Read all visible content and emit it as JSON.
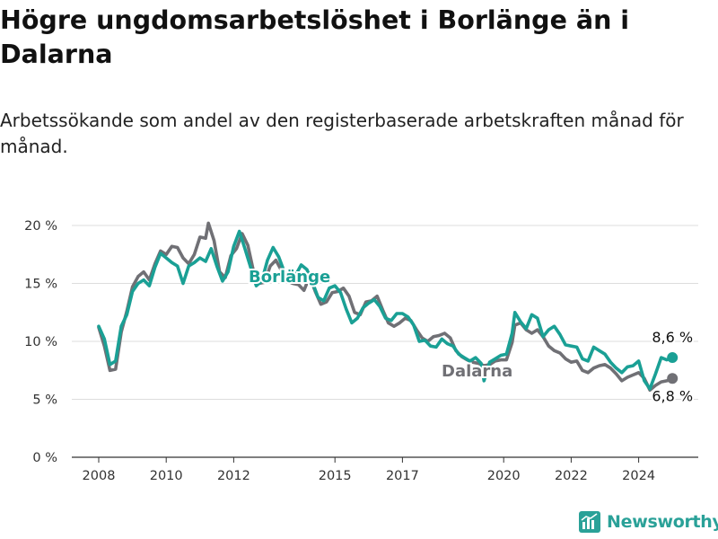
{
  "title": "Högre ungdomsarbetslöshet i Borlänge än i Dalarna",
  "subtitle": "Arbetssökande som andel av den registerbaserade arbetskraften månad för månad.",
  "brand": {
    "name": "Newsworthy",
    "icon": "newsworthy-logo-icon",
    "color": "#2aa198"
  },
  "colors": {
    "borlange": "#1aa095",
    "dalarna": "#707075",
    "grid": "#dddddd",
    "axis": "#333333"
  },
  "chart_data": {
    "type": "line",
    "x_type": "date",
    "xlim": [
      "2007-09",
      "2025-06"
    ],
    "ylim": [
      0,
      20
    ],
    "yticks": [
      0,
      5,
      10,
      15,
      20
    ],
    "ytick_labels": [
      "0 %",
      "5 %",
      "10 %",
      "15 %",
      "20 %"
    ],
    "xticks": [
      "2008-01",
      "2010-01",
      "2012-01",
      "2015-01",
      "2017-01",
      "2020-01",
      "2022-01",
      "2024-01"
    ],
    "xtick_labels": [
      "2008",
      "2010",
      "2012",
      "2015",
      "2017",
      "2020",
      "2022",
      "2024"
    ],
    "grid": true,
    "series": [
      {
        "name": "Dalarna",
        "key": "dalarna",
        "end_label": "6,8 %",
        "points": [
          [
            "2008-01",
            11.2
          ],
          [
            "2008-03",
            9.6
          ],
          [
            "2008-05",
            7.5
          ],
          [
            "2008-07",
            7.6
          ],
          [
            "2008-09",
            10.8
          ],
          [
            "2008-11",
            12.6
          ],
          [
            "2009-01",
            14.7
          ],
          [
            "2009-03",
            15.6
          ],
          [
            "2009-05",
            16.0
          ],
          [
            "2009-07",
            15.3
          ],
          [
            "2009-09",
            16.7
          ],
          [
            "2009-11",
            17.8
          ],
          [
            "2010-01",
            17.5
          ],
          [
            "2010-03",
            18.2
          ],
          [
            "2010-05",
            18.1
          ],
          [
            "2010-07",
            17.2
          ],
          [
            "2010-09",
            16.7
          ],
          [
            "2010-11",
            17.5
          ],
          [
            "2011-01",
            19.0
          ],
          [
            "2011-03",
            18.9
          ],
          [
            "2011-04",
            20.2
          ],
          [
            "2011-06",
            18.7
          ],
          [
            "2011-08",
            16.0
          ],
          [
            "2011-10",
            15.5
          ],
          [
            "2011-12",
            17.4
          ],
          [
            "2012-02",
            18.0
          ],
          [
            "2012-04",
            19.3
          ],
          [
            "2012-06",
            18.3
          ],
          [
            "2012-08",
            16.1
          ],
          [
            "2012-10",
            15.0
          ],
          [
            "2012-12",
            15.1
          ],
          [
            "2013-02",
            16.5
          ],
          [
            "2013-04",
            17.0
          ],
          [
            "2013-06",
            16.1
          ],
          [
            "2013-08",
            15.2
          ],
          [
            "2013-10",
            15.0
          ],
          [
            "2013-12",
            14.9
          ],
          [
            "2014-02",
            14.4
          ],
          [
            "2014-04",
            15.6
          ],
          [
            "2014-06",
            14.3
          ],
          [
            "2014-08",
            13.2
          ],
          [
            "2014-10",
            13.4
          ],
          [
            "2014-12",
            14.2
          ],
          [
            "2015-02",
            14.3
          ],
          [
            "2015-04",
            14.6
          ],
          [
            "2015-06",
            13.9
          ],
          [
            "2015-08",
            12.5
          ],
          [
            "2015-10",
            12.3
          ],
          [
            "2015-12",
            13.4
          ],
          [
            "2016-02",
            13.5
          ],
          [
            "2016-04",
            13.9
          ],
          [
            "2016-06",
            12.7
          ],
          [
            "2016-08",
            11.6
          ],
          [
            "2016-10",
            11.3
          ],
          [
            "2016-12",
            11.6
          ],
          [
            "2017-02",
            12.0
          ],
          [
            "2017-04",
            11.8
          ],
          [
            "2017-06",
            11.0
          ],
          [
            "2017-08",
            10.3
          ],
          [
            "2017-10",
            10.0
          ],
          [
            "2017-12",
            10.4
          ],
          [
            "2018-02",
            10.5
          ],
          [
            "2018-04",
            10.7
          ],
          [
            "2018-06",
            10.3
          ],
          [
            "2018-08",
            9.2
          ],
          [
            "2018-10",
            8.7
          ],
          [
            "2018-12",
            8.4
          ],
          [
            "2019-02",
            8.2
          ],
          [
            "2019-04",
            8.1
          ],
          [
            "2019-06",
            7.9
          ],
          [
            "2019-08",
            8.0
          ],
          [
            "2019-10",
            8.3
          ],
          [
            "2019-12",
            8.4
          ],
          [
            "2020-02",
            8.4
          ],
          [
            "2020-04",
            9.9
          ],
          [
            "2020-05",
            11.4
          ],
          [
            "2020-07",
            11.6
          ],
          [
            "2020-09",
            11.0
          ],
          [
            "2020-11",
            10.7
          ],
          [
            "2021-01",
            11.0
          ],
          [
            "2021-03",
            10.4
          ],
          [
            "2021-05",
            9.6
          ],
          [
            "2021-07",
            9.2
          ],
          [
            "2021-09",
            9.0
          ],
          [
            "2021-11",
            8.5
          ],
          [
            "2022-01",
            8.2
          ],
          [
            "2022-03",
            8.3
          ],
          [
            "2022-05",
            7.5
          ],
          [
            "2022-07",
            7.3
          ],
          [
            "2022-09",
            7.7
          ],
          [
            "2022-11",
            7.9
          ],
          [
            "2023-01",
            8.0
          ],
          [
            "2023-03",
            7.7
          ],
          [
            "2023-05",
            7.2
          ],
          [
            "2023-07",
            6.6
          ],
          [
            "2023-09",
            6.9
          ],
          [
            "2023-11",
            7.1
          ],
          [
            "2024-01",
            7.3
          ],
          [
            "2024-03",
            6.8
          ],
          [
            "2024-05",
            5.8
          ],
          [
            "2024-07",
            6.2
          ],
          [
            "2024-09",
            6.5
          ],
          [
            "2024-11",
            6.6
          ],
          [
            "2025-01",
            6.8
          ]
        ]
      },
      {
        "name": "Borlänge",
        "key": "borlange",
        "end_label": "8,6 %",
        "points": [
          [
            "2008-01",
            11.3
          ],
          [
            "2008-03",
            10.2
          ],
          [
            "2008-05",
            8.0
          ],
          [
            "2008-07",
            8.3
          ],
          [
            "2008-09",
            11.3
          ],
          [
            "2008-11",
            12.3
          ],
          [
            "2009-01",
            14.3
          ],
          [
            "2009-03",
            15.0
          ],
          [
            "2009-05",
            15.3
          ],
          [
            "2009-07",
            14.8
          ],
          [
            "2009-09",
            16.4
          ],
          [
            "2009-11",
            17.6
          ],
          [
            "2010-01",
            17.2
          ],
          [
            "2010-03",
            16.8
          ],
          [
            "2010-05",
            16.5
          ],
          [
            "2010-07",
            15.0
          ],
          [
            "2010-09",
            16.5
          ],
          [
            "2010-11",
            16.8
          ],
          [
            "2011-01",
            17.2
          ],
          [
            "2011-03",
            16.9
          ],
          [
            "2011-05",
            18.0
          ],
          [
            "2011-07",
            16.5
          ],
          [
            "2011-09",
            15.2
          ],
          [
            "2011-11",
            16.0
          ],
          [
            "2012-01",
            18.2
          ],
          [
            "2012-03",
            19.5
          ],
          [
            "2012-05",
            18.0
          ],
          [
            "2012-07",
            16.4
          ],
          [
            "2012-09",
            14.8
          ],
          [
            "2012-11",
            15.2
          ],
          [
            "2013-01",
            17.0
          ],
          [
            "2013-03",
            18.1
          ],
          [
            "2013-05",
            17.3
          ],
          [
            "2013-07",
            16.0
          ],
          [
            "2013-09",
            15.4
          ],
          [
            "2013-11",
            15.7
          ],
          [
            "2014-01",
            16.6
          ],
          [
            "2014-03",
            16.2
          ],
          [
            "2014-05",
            15.1
          ],
          [
            "2014-07",
            13.8
          ],
          [
            "2014-09",
            13.5
          ],
          [
            "2014-11",
            14.6
          ],
          [
            "2015-01",
            14.8
          ],
          [
            "2015-03",
            14.2
          ],
          [
            "2015-05",
            12.8
          ],
          [
            "2015-07",
            11.6
          ],
          [
            "2015-09",
            12.0
          ],
          [
            "2015-11",
            12.9
          ],
          [
            "2016-01",
            13.3
          ],
          [
            "2016-03",
            13.6
          ],
          [
            "2016-05",
            13.0
          ],
          [
            "2016-07",
            12.0
          ],
          [
            "2016-09",
            11.8
          ],
          [
            "2016-11",
            12.4
          ],
          [
            "2017-01",
            12.4
          ],
          [
            "2017-03",
            12.1
          ],
          [
            "2017-05",
            11.4
          ],
          [
            "2017-07",
            10.0
          ],
          [
            "2017-09",
            10.1
          ],
          [
            "2017-11",
            9.6
          ],
          [
            "2018-01",
            9.5
          ],
          [
            "2018-03",
            10.2
          ],
          [
            "2018-05",
            9.8
          ],
          [
            "2018-07",
            9.6
          ],
          [
            "2018-09",
            8.9
          ],
          [
            "2018-11",
            8.6
          ],
          [
            "2019-01",
            8.3
          ],
          [
            "2019-03",
            8.6
          ],
          [
            "2019-05",
            8.1
          ],
          [
            "2019-06",
            6.6
          ],
          [
            "2019-08",
            8.2
          ],
          [
            "2019-10",
            8.5
          ],
          [
            "2019-12",
            8.8
          ],
          [
            "2020-02",
            8.9
          ],
          [
            "2020-04",
            10.7
          ],
          [
            "2020-05",
            12.5
          ],
          [
            "2020-07",
            11.7
          ],
          [
            "2020-09",
            11.1
          ],
          [
            "2020-11",
            12.3
          ],
          [
            "2021-01",
            12.0
          ],
          [
            "2021-03",
            10.4
          ],
          [
            "2021-05",
            11.0
          ],
          [
            "2021-07",
            11.3
          ],
          [
            "2021-09",
            10.6
          ],
          [
            "2021-11",
            9.7
          ],
          [
            "2022-01",
            9.6
          ],
          [
            "2022-03",
            9.5
          ],
          [
            "2022-05",
            8.5
          ],
          [
            "2022-07",
            8.3
          ],
          [
            "2022-09",
            9.5
          ],
          [
            "2022-11",
            9.2
          ],
          [
            "2023-01",
            8.9
          ],
          [
            "2023-03",
            8.2
          ],
          [
            "2023-05",
            7.7
          ],
          [
            "2023-07",
            7.3
          ],
          [
            "2023-09",
            7.8
          ],
          [
            "2023-11",
            7.9
          ],
          [
            "2024-01",
            8.3
          ],
          [
            "2024-03",
            6.6
          ],
          [
            "2024-05",
            5.9
          ],
          [
            "2024-07",
            7.2
          ],
          [
            "2024-09",
            8.6
          ],
          [
            "2024-11",
            8.4
          ],
          [
            "2025-01",
            8.6
          ]
        ]
      }
    ]
  }
}
